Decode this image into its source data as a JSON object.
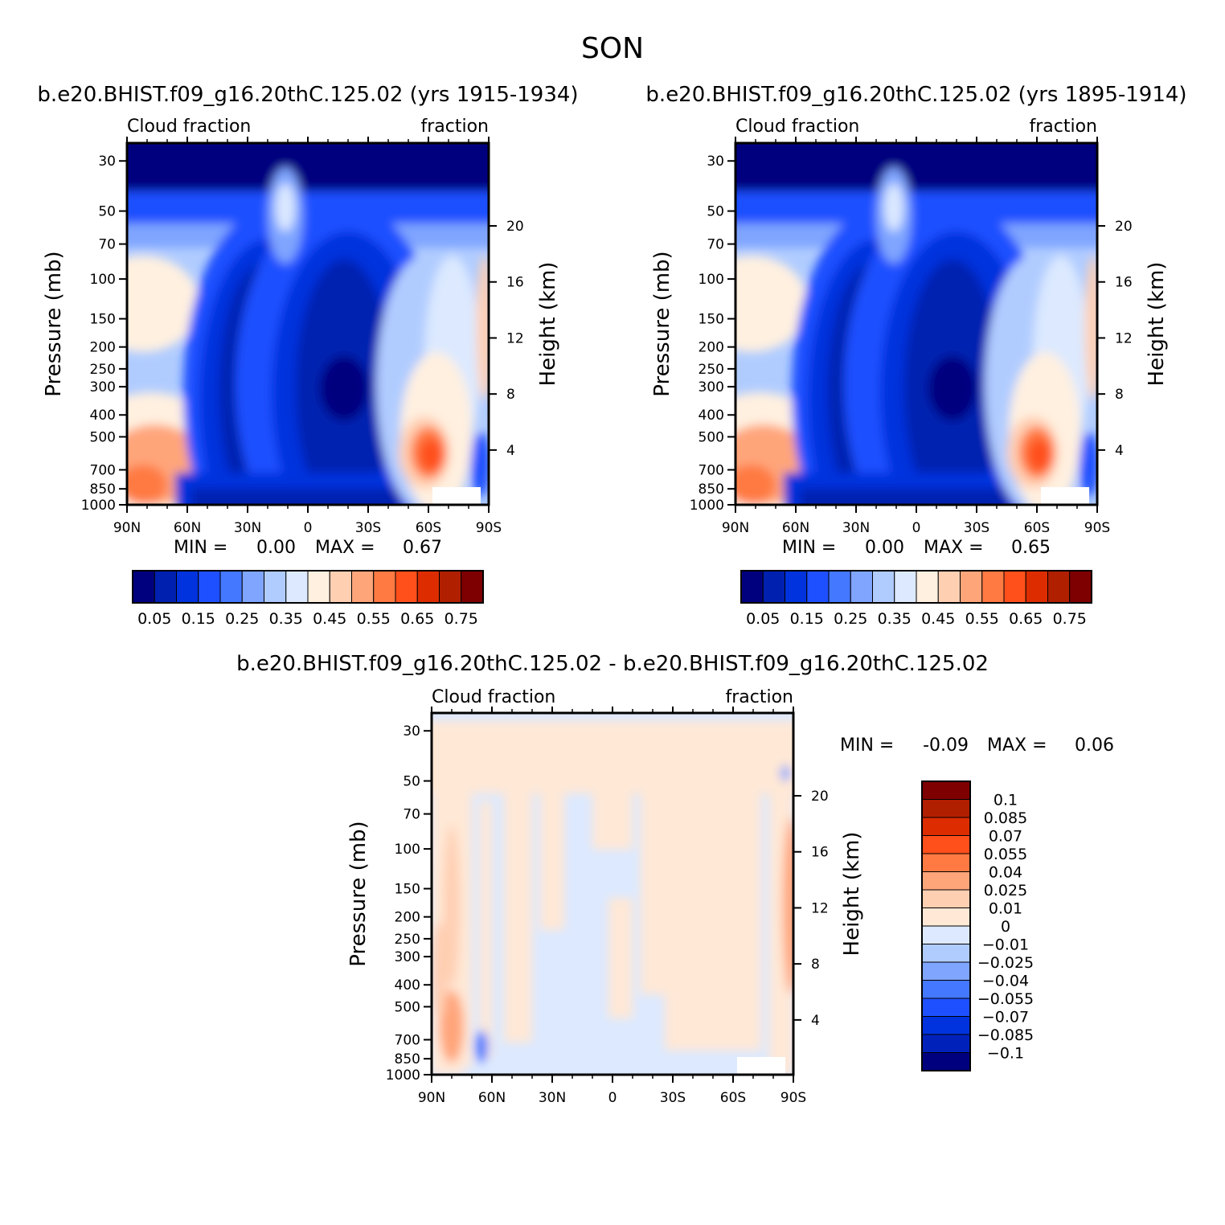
{
  "season_title": "SON",
  "colors": {
    "seq": [
      "#00007f",
      "#0020b0",
      "#0033dd",
      "#1e50ff",
      "#4478ff",
      "#7fa5ff",
      "#b0ccff",
      "#dce9ff",
      "#fff0e0",
      "#ffcfb2",
      "#ffa57a",
      "#ff7a42",
      "#ff4f1a",
      "#dd2d00",
      "#b01f00",
      "#7f0000"
    ],
    "diff": [
      "#00007f",
      "#0022bb",
      "#0033dd",
      "#1e50ff",
      "#4478ff",
      "#7fa5ff",
      "#b0ccff",
      "#dce9ff",
      "#ffe8d6",
      "#ffcfb2",
      "#ffa57a",
      "#ff7a42",
      "#ff4f1a",
      "#dd2d00",
      "#b01f00",
      "#7f0000"
    ]
  },
  "chart_data": [
    {
      "type": "heatmap",
      "title": "b.e20.BHIST.f09_g16.20thC.125.02 (yrs 1915-1934)",
      "variable": "Cloud fraction",
      "units": "fraction",
      "ylabel": "Pressure (mb)",
      "y2label": "Height (km)",
      "x_ticks": [
        "90N",
        "60N",
        "30N",
        "0",
        "30S",
        "60S",
        "90S"
      ],
      "y_ticks": [
        "30",
        "50",
        "70",
        "100",
        "150",
        "200",
        "250",
        "300",
        "400",
        "500",
        "700",
        "850",
        "1000"
      ],
      "y2_ticks": [
        "20",
        "16",
        "12",
        "8",
        "4"
      ],
      "min_label": "MIN =",
      "min_value": "0.00",
      "max_label": "MAX =",
      "max_value": "0.67",
      "colorbar_labels": [
        "0.05",
        "0.15",
        "0.25",
        "0.35",
        "0.45",
        "0.55",
        "0.65",
        "0.75"
      ]
    },
    {
      "type": "heatmap",
      "title": "b.e20.BHIST.f09_g16.20thC.125.02 (yrs 1895-1914)",
      "variable": "Cloud fraction",
      "units": "fraction",
      "ylabel": "Pressure (mb)",
      "y2label": "Height (km)",
      "x_ticks": [
        "90N",
        "60N",
        "30N",
        "0",
        "30S",
        "60S",
        "90S"
      ],
      "y_ticks": [
        "30",
        "50",
        "70",
        "100",
        "150",
        "200",
        "250",
        "300",
        "400",
        "500",
        "700",
        "850",
        "1000"
      ],
      "y2_ticks": [
        "20",
        "16",
        "12",
        "8",
        "4"
      ],
      "min_label": "MIN =",
      "min_value": "0.00",
      "max_label": "MAX =",
      "max_value": "0.65",
      "colorbar_labels": [
        "0.05",
        "0.15",
        "0.25",
        "0.35",
        "0.45",
        "0.55",
        "0.65",
        "0.75"
      ]
    },
    {
      "type": "heatmap",
      "title": "b.e20.BHIST.f09_g16.20thC.125.02 - b.e20.BHIST.f09_g16.20thC.125.02",
      "variable": "Cloud fraction",
      "units": "fraction",
      "ylabel": "Pressure (mb)",
      "y2label": "Height (km)",
      "x_ticks": [
        "90N",
        "60N",
        "30N",
        "0",
        "30S",
        "60S",
        "90S"
      ],
      "y_ticks": [
        "30",
        "50",
        "70",
        "100",
        "150",
        "200",
        "250",
        "300",
        "400",
        "500",
        "700",
        "850",
        "1000"
      ],
      "y2_ticks": [
        "20",
        "16",
        "12",
        "8",
        "4"
      ],
      "min_label": "MIN =",
      "min_value": "-0.09",
      "max_label": "MAX =",
      "max_value": "0.06",
      "colorbar_labels": [
        "0.1",
        "0.085",
        "0.07",
        "0.055",
        "0.04",
        "0.025",
        "0.01",
        "0",
        "-0.01",
        "-0.025",
        "-0.04",
        "-0.055",
        "-0.07",
        "-0.085",
        "-0.1"
      ]
    }
  ]
}
